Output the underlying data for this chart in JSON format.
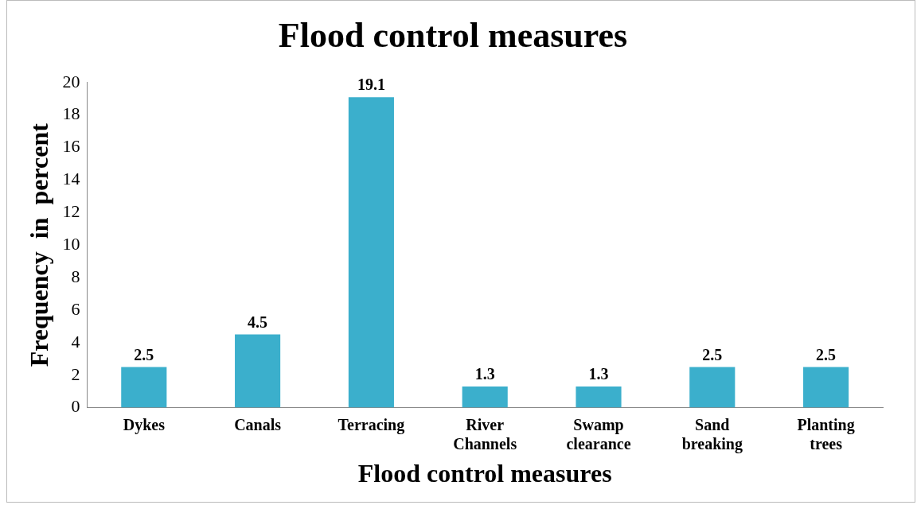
{
  "chart_data": {
    "type": "bar",
    "title": "Flood control measures",
    "xlabel": "Flood control measures",
    "ylabel": "Frequency  in  percent",
    "categories": [
      "Dykes",
      "Canals",
      "Terracing",
      "River Channels",
      "Swamp clearance",
      "Sand breaking",
      "Planting trees"
    ],
    "values": [
      2.5,
      4.5,
      19.1,
      1.3,
      1.3,
      2.5,
      2.5
    ],
    "color": "#3bafcc",
    "ylim": [
      0,
      20
    ],
    "yticks": [
      0,
      2,
      4,
      6,
      8,
      10,
      12,
      14,
      16,
      18,
      20
    ],
    "grid": false,
    "legend": false,
    "data_labels": true
  }
}
